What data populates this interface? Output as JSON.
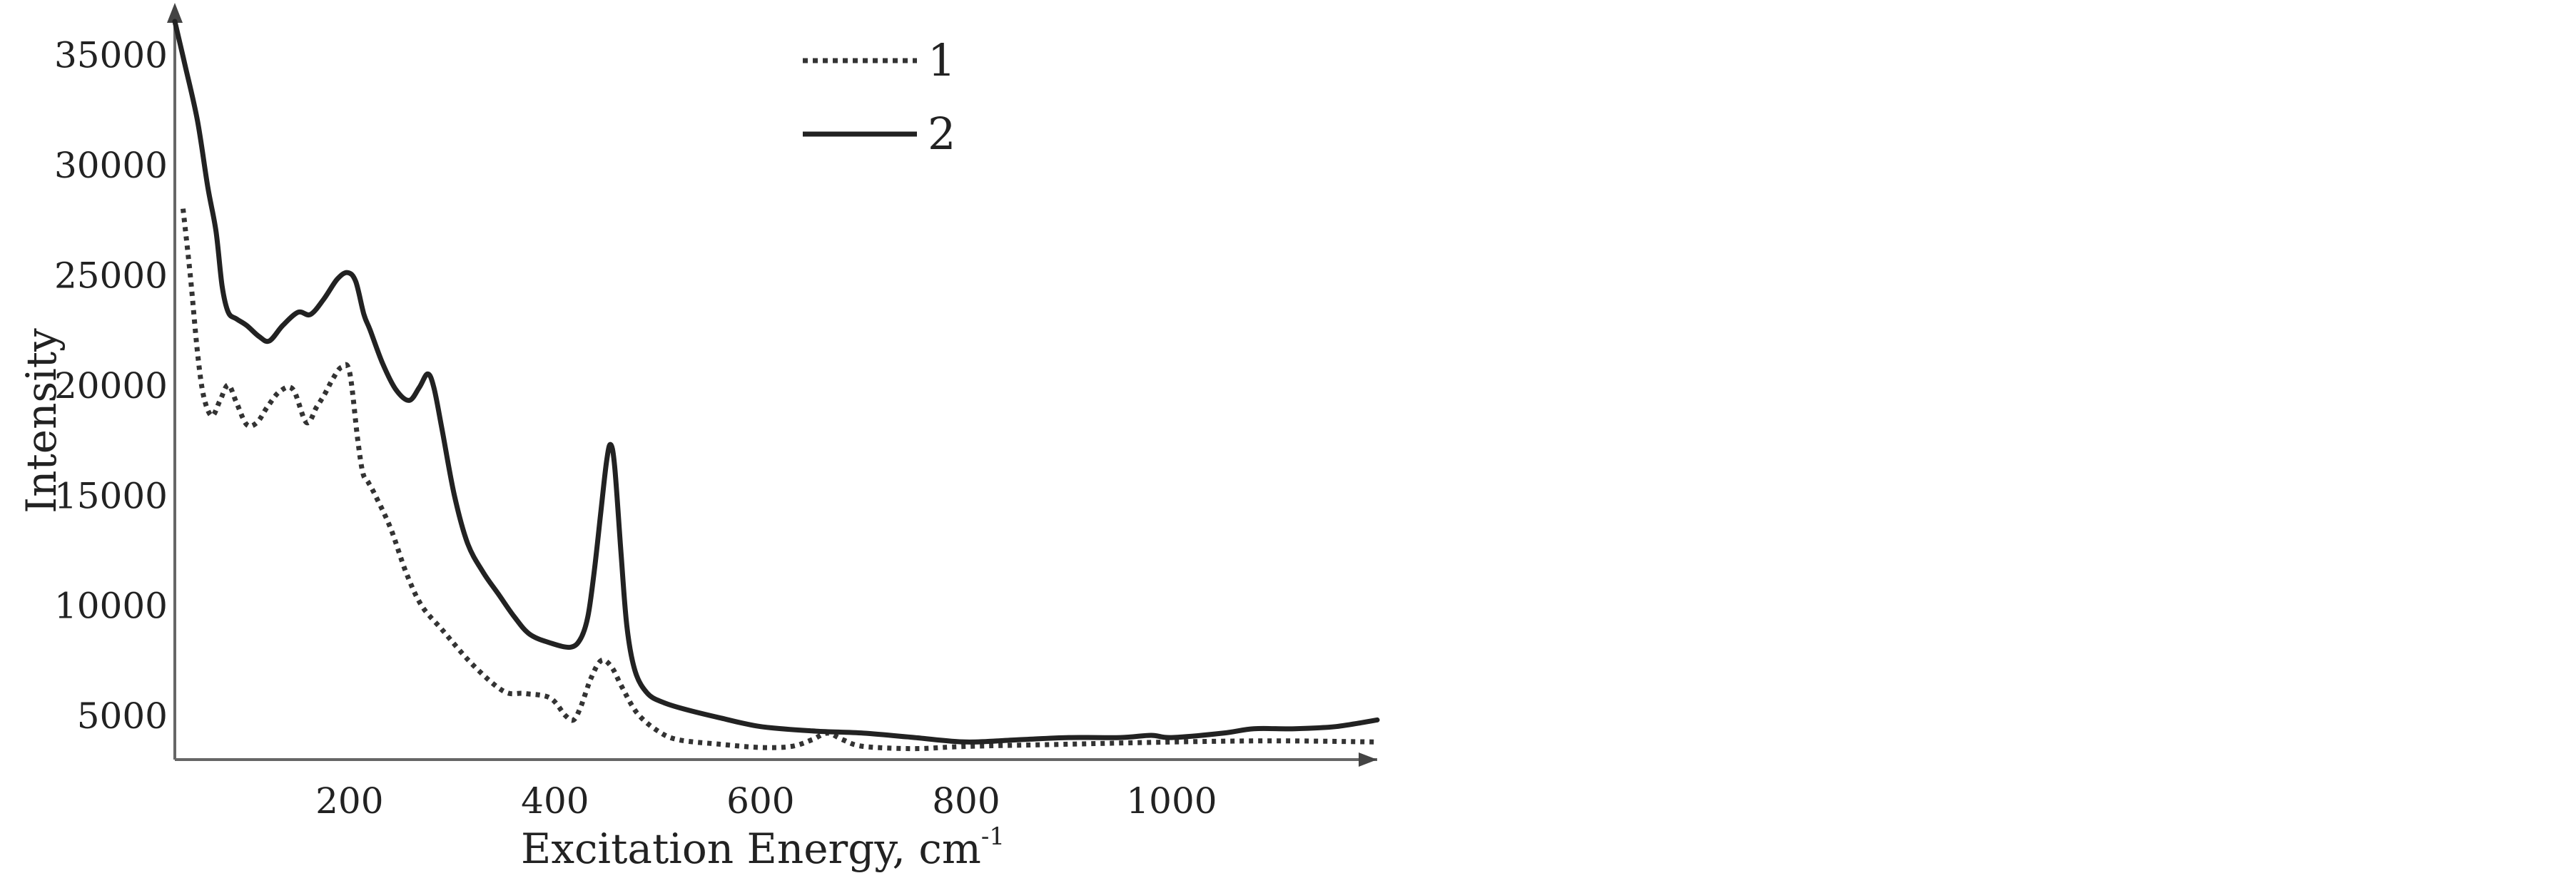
{
  "chart_data": {
    "type": "line",
    "title": "",
    "xlabel": "Excitation Energy, cm",
    "xlabel_superscript": "-1",
    "ylabel": "Intensity",
    "xlim": [
      30,
      1200
    ],
    "ylim": [
      3000,
      36500
    ],
    "xticks": [
      "200",
      "400",
      "600",
      "800",
      "1000"
    ],
    "yticks": [
      "5000",
      "10000",
      "15000",
      "20000",
      "25000",
      "30000",
      "35000"
    ],
    "grid": false,
    "legend": {
      "placement": "top-center"
    },
    "series": [
      {
        "name": "1",
        "style": "dotted",
        "color": "#333333",
        "x": [
          38,
          45,
          52,
          58,
          66,
          74,
          82,
          90,
          100,
          110,
          120,
          132,
          145,
          158,
          168,
          176,
          184,
          192,
          200,
          208,
          213,
          218,
          225,
          240,
          255,
          270,
          290,
          320,
          350,
          370,
          395,
          410,
          418,
          425,
          435,
          445,
          455,
          465,
          480,
          500,
          520,
          560,
          600,
          630,
          650,
          665,
          680,
          700,
          750,
          800,
          900,
          1000,
          1100,
          1200
        ],
        "y": [
          28000,
          25000,
          21500,
          19500,
          18600,
          19300,
          20000,
          19200,
          18200,
          18300,
          19000,
          19700,
          19800,
          18300,
          19000,
          19600,
          20300,
          20800,
          20600,
          17500,
          16000,
          15600,
          15000,
          13500,
          11500,
          10000,
          8900,
          7300,
          6100,
          6000,
          5800,
          5000,
          4800,
          5400,
          6700,
          7500,
          7200,
          6300,
          5100,
          4300,
          3900,
          3700,
          3550,
          3600,
          3900,
          4200,
          3900,
          3600,
          3500,
          3600,
          3700,
          3800,
          3850,
          3800
        ]
      },
      {
        "name": "2",
        "style": "solid",
        "color": "#222222",
        "x": [
          30,
          40,
          52,
          62,
          70,
          76,
          82,
          90,
          100,
          112,
          122,
          135,
          150,
          162,
          175,
          188,
          198,
          206,
          214,
          220,
          232,
          245,
          258,
          268,
          276,
          282,
          290,
          302,
          315,
          330,
          345,
          360,
          375,
          395,
          415,
          425,
          432,
          438,
          444,
          450,
          454,
          458,
          464,
          470,
          478,
          490,
          505,
          525,
          560,
          600,
          650,
          700,
          750,
          800,
          850,
          900,
          950,
          980,
          1000,
          1050,
          1080,
          1120,
          1160,
          1200
        ],
        "y": [
          36500,
          34500,
          32000,
          29000,
          27000,
          24500,
          23300,
          23000,
          22700,
          22200,
          22000,
          22700,
          23300,
          23200,
          23900,
          24800,
          25100,
          24700,
          23200,
          22500,
          21000,
          19800,
          19300,
          19900,
          20500,
          19900,
          18000,
          15000,
          12800,
          11500,
          10500,
          9500,
          8700,
          8300,
          8100,
          8500,
          9500,
          11500,
          14000,
          16500,
          17300,
          16300,
          12500,
          9000,
          7000,
          6000,
          5600,
          5300,
          4900,
          4500,
          4300,
          4200,
          4000,
          3800,
          3900,
          4000,
          4000,
          4100,
          4000,
          4200,
          4400,
          4400,
          4500,
          4800
        ]
      }
    ]
  }
}
